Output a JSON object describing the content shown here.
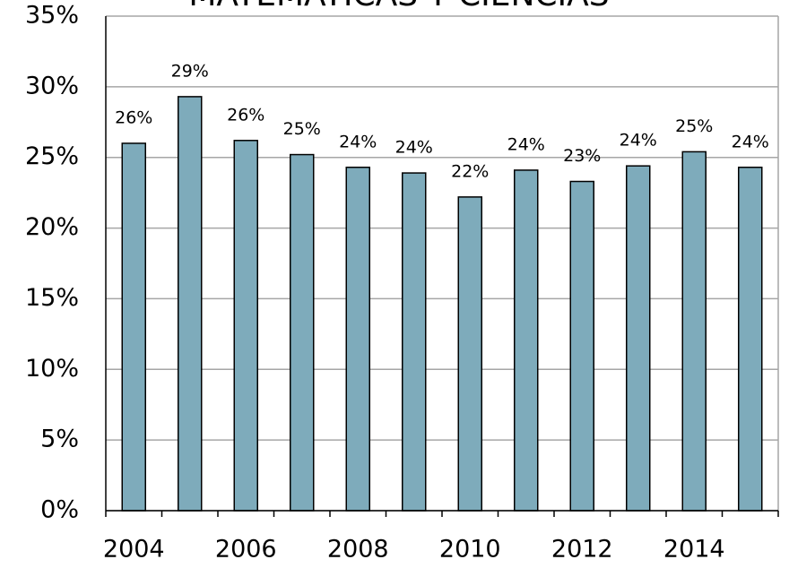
{
  "chart_data": {
    "type": "bar",
    "title": "MATEMATICAS Y CIENCIAS",
    "categories": [
      "2004",
      null,
      "2006",
      null,
      "2008",
      null,
      "2010",
      null,
      "2012",
      null,
      "2014",
      null
    ],
    "values": [
      26.0,
      29.3,
      26.2,
      25.2,
      24.3,
      23.9,
      22.2,
      24.1,
      23.3,
      24.4,
      25.4,
      24.3
    ],
    "value_labels": [
      "26%",
      "29%",
      "26%",
      "25%",
      "24%",
      "24%",
      "22%",
      "24%",
      "23%",
      "24%",
      "25%",
      "24%"
    ],
    "color": "#7eabbb",
    "ylim": [
      0,
      35
    ],
    "yticks": [
      {
        "value": 0,
        "label": "0%"
      },
      {
        "value": 5,
        "label": "5%"
      },
      {
        "value": 10,
        "label": "10%"
      },
      {
        "value": 15,
        "label": "15%"
      },
      {
        "value": 20,
        "label": "20%"
      },
      {
        "value": 25,
        "label": "25%"
      },
      {
        "value": 30,
        "label": "30%"
      },
      {
        "value": 35,
        "label": "35%"
      }
    ],
    "grid": true
  }
}
